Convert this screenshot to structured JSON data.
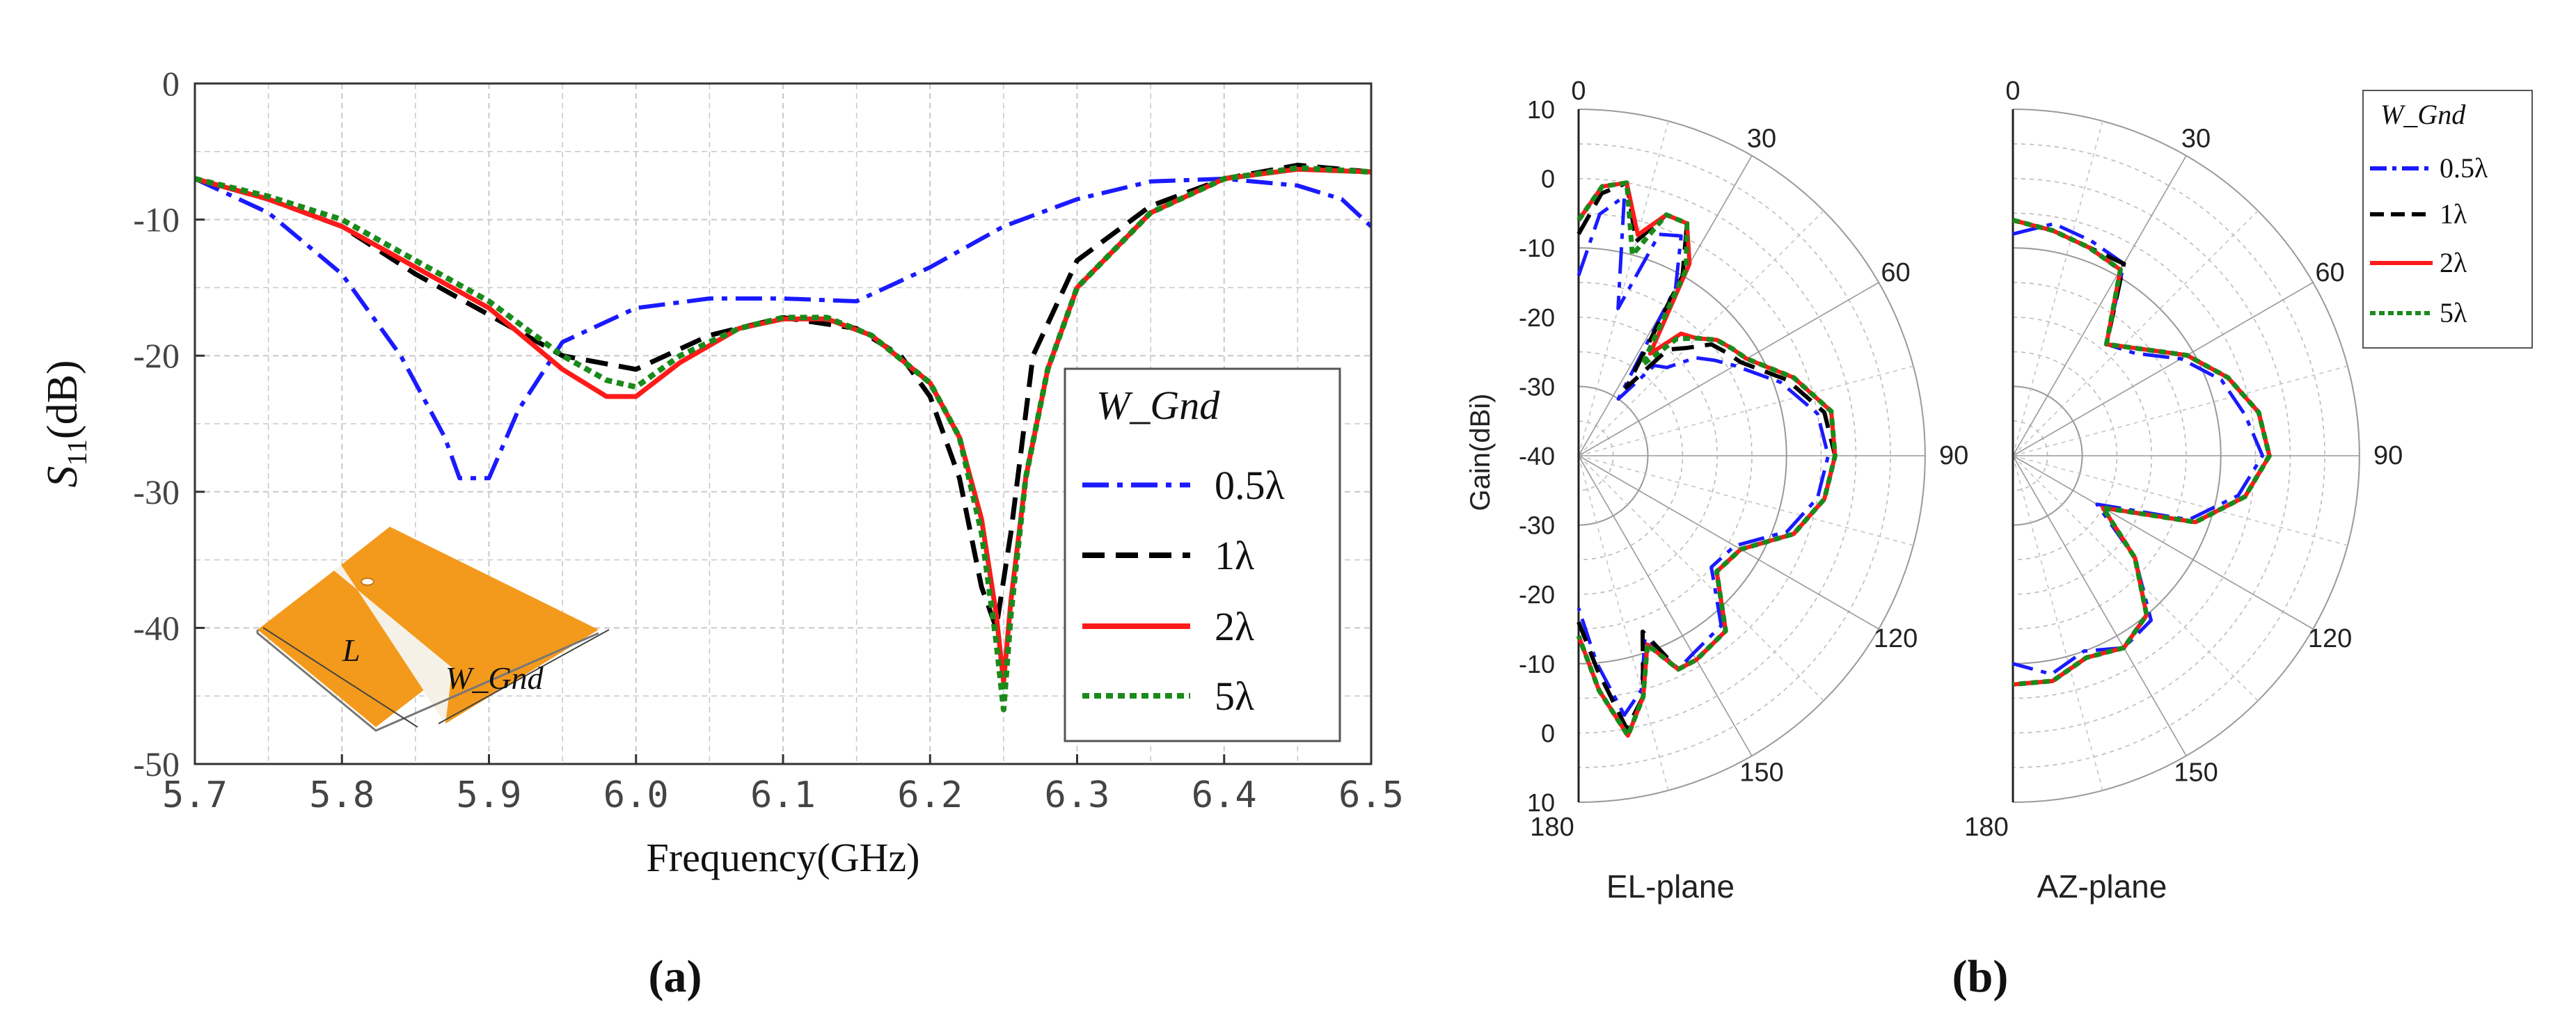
{
  "panel_labels": {
    "a": "(a)",
    "b": "(b)"
  },
  "legend": {
    "title": "W_Gnd",
    "entries": [
      "0.5λ",
      "1λ",
      "2λ",
      "5λ"
    ]
  },
  "colors": {
    "blue": "#1a1aff",
    "black": "#000000",
    "red": "#ff1a1a",
    "green": "#1a8a1a",
    "antenna": "#f39a1c"
  },
  "inset": {
    "label_l": "L",
    "label_w": "W_Gnd"
  },
  "chart_data": [
    {
      "type": "line",
      "xlabel": "Frequency(GHz)",
      "ylabel": "S11(dB)",
      "xlim": [
        5.7,
        6.5
      ],
      "ylim": [
        -50,
        0
      ],
      "x_ticks": [
        "5.7",
        "5.8",
        "5.9",
        "6.0",
        "6.1",
        "6.2",
        "6.3",
        "6.4",
        "6.5"
      ],
      "y_ticks": [
        "0",
        "-10",
        "-20",
        "-30",
        "-40",
        "-50"
      ],
      "grid": true,
      "legend_position": "right",
      "series": [
        {
          "name": "0.5λ",
          "style": "dashdot",
          "color": "blue",
          "x": [
            5.7,
            5.75,
            5.8,
            5.84,
            5.87,
            5.88,
            5.9,
            5.92,
            5.95,
            6.0,
            6.05,
            6.1,
            6.15,
            6.2,
            6.25,
            6.3,
            6.35,
            6.4,
            6.45,
            6.48,
            6.5
          ],
          "y": [
            -7,
            -9.5,
            -14,
            -20,
            -26,
            -29,
            -29,
            -24,
            -19,
            -16.5,
            -15.8,
            -15.8,
            -16,
            -13.5,
            -10.5,
            -8.5,
            -7.2,
            -7,
            -7.5,
            -8.5,
            -10.5
          ]
        },
        {
          "name": "1λ",
          "style": "dashed",
          "color": "black",
          "x": [
            5.7,
            5.75,
            5.8,
            5.85,
            5.9,
            5.95,
            6.0,
            6.05,
            6.1,
            6.15,
            6.18,
            6.2,
            6.22,
            6.235,
            6.245,
            6.255,
            6.27,
            6.3,
            6.35,
            6.4,
            6.45,
            6.5
          ],
          "y": [
            -7,
            -8.5,
            -10.5,
            -14,
            -17,
            -20,
            -21,
            -18.5,
            -17.2,
            -18,
            -20,
            -23,
            -29,
            -37,
            -40,
            -33,
            -20,
            -13,
            -9,
            -7,
            -6,
            -6.5
          ]
        },
        {
          "name": "2λ",
          "style": "solid",
          "color": "red",
          "x": [
            5.7,
            5.75,
            5.8,
            5.85,
            5.9,
            5.95,
            5.98,
            6.0,
            6.03,
            6.07,
            6.1,
            6.13,
            6.16,
            6.2,
            6.22,
            6.235,
            6.245,
            6.25,
            6.255,
            6.265,
            6.28,
            6.3,
            6.35,
            6.4,
            6.45,
            6.5
          ],
          "y": [
            -7,
            -8.5,
            -10.5,
            -13.5,
            -16.5,
            -21,
            -23,
            -23,
            -20.5,
            -18,
            -17.3,
            -17.3,
            -18.5,
            -22,
            -26,
            -32,
            -39,
            -44,
            -38,
            -29,
            -21,
            -15,
            -9.5,
            -7,
            -6.3,
            -6.5
          ]
        },
        {
          "name": "5λ",
          "style": "dotted",
          "color": "green",
          "x": [
            5.7,
            5.75,
            5.8,
            5.85,
            5.9,
            5.95,
            5.98,
            6.0,
            6.03,
            6.07,
            6.1,
            6.13,
            6.16,
            6.2,
            6.22,
            6.235,
            6.245,
            6.25,
            6.255,
            6.265,
            6.28,
            6.3,
            6.35,
            6.4,
            6.45,
            6.5
          ],
          "y": [
            -7,
            -8.3,
            -10,
            -13,
            -16,
            -20,
            -21.8,
            -22.3,
            -20,
            -18,
            -17.2,
            -17.2,
            -18.5,
            -22,
            -26,
            -33,
            -41,
            -46,
            -39,
            -29,
            -21,
            -15,
            -9.5,
            -7,
            -6.2,
            -6.5
          ]
        }
      ]
    },
    {
      "type": "polar",
      "subplots": [
        "EL-plane",
        "AZ-plane"
      ],
      "ylabel": "Gain(dBi)",
      "r_range": [
        -40,
        10
      ],
      "r_ticks_upper": [
        "10",
        "0",
        "-10",
        "-20",
        "-30",
        "-40"
      ],
      "r_ticks_lower": [
        "-30",
        "-20",
        "-10",
        "0",
        "10"
      ],
      "angle_ticks": [
        "0",
        "30",
        "60",
        "90",
        "120",
        "150",
        "180"
      ],
      "grid": true,
      "el_series": [
        {
          "name": "0.5λ",
          "theta": [
            0,
            5,
            10,
            15,
            20,
            25,
            30,
            35,
            40,
            45,
            50,
            55,
            60,
            70,
            80,
            90,
            100,
            110,
            120,
            130,
            140,
            150,
            155,
            160,
            165,
            170,
            175,
            180
          ],
          "gain": [
            -14,
            -5,
            -2,
            -18,
            -6,
            -5,
            -12,
            -30,
            -23,
            -22,
            -18,
            -16,
            -14,
            -9,
            -5,
            -4,
            -5,
            -8,
            -14,
            -15,
            -8,
            -7,
            -6,
            -12,
            -5,
            -2,
            -10,
            -18
          ]
        },
        {
          "name": "1λ",
          "theta": [
            0,
            5,
            10,
            15,
            20,
            25,
            30,
            35,
            40,
            45,
            50,
            55,
            60,
            70,
            80,
            90,
            100,
            110,
            120,
            130,
            140,
            150,
            155,
            160,
            165,
            170,
            175,
            180
          ],
          "gain": [
            -8,
            -2,
            0,
            -8,
            -3,
            -3,
            -10,
            -28,
            -20,
            -18,
            -15,
            -14,
            -13,
            -8,
            -4,
            -3,
            -4,
            -7,
            -13,
            -14,
            -7,
            -6,
            -6,
            -13,
            -4,
            0,
            -9,
            -16
          ]
        },
        {
          "name": "2λ",
          "theta": [
            0,
            5,
            10,
            15,
            20,
            25,
            30,
            35,
            40,
            45,
            50,
            55,
            60,
            70,
            80,
            90,
            100,
            110,
            120,
            130,
            140,
            150,
            155,
            160,
            165,
            170,
            175,
            180
          ],
          "gain": [
            -6,
            -1,
            0,
            -7,
            -3,
            -3,
            -8,
            -22,
            -17,
            -16,
            -14,
            -13,
            -12,
            -7,
            -3,
            -3,
            -4,
            -7,
            -13,
            -14,
            -7,
            -6,
            -6,
            -11,
            -4,
            1,
            -6,
            -14
          ]
        },
        {
          "name": "5λ",
          "theta": [
            0,
            5,
            10,
            15,
            20,
            25,
            30,
            35,
            40,
            45,
            50,
            55,
            60,
            70,
            80,
            90,
            100,
            110,
            120,
            130,
            140,
            150,
            155,
            160,
            165,
            170,
            175,
            180
          ],
          "gain": [
            -6,
            -1,
            0,
            -10,
            -3,
            -3,
            -9,
            -24,
            -18,
            -16,
            -14,
            -13,
            -12,
            -7,
            -3,
            -3,
            -4,
            -7,
            -13,
            -14,
            -7,
            -6,
            -6,
            -11,
            -4,
            1,
            -6,
            -14
          ]
        }
      ],
      "az_series": [
        {
          "name": "0.5λ",
          "theta": [
            0,
            10,
            20,
            30,
            40,
            50,
            60,
            70,
            80,
            90,
            100,
            110,
            120,
            130,
            140,
            150,
            160,
            170,
            180
          ],
          "gain": [
            -8,
            -6,
            -7,
            -8,
            -19,
            -17,
            -12,
            -8,
            -6,
            -4,
            -7,
            -13,
            -26,
            -17,
            -9,
            -8,
            -10,
            -8,
            -10
          ]
        },
        {
          "name": "1λ",
          "theta": [
            0,
            10,
            20,
            30,
            40,
            50,
            60,
            70,
            80,
            90,
            100,
            110,
            120,
            130,
            140,
            150,
            160,
            170,
            180
          ],
          "gain": [
            -6,
            -7,
            -8,
            -8,
            -19,
            -16,
            -11,
            -7,
            -4,
            -3,
            -6,
            -12,
            -25,
            -17,
            -10,
            -8,
            -9,
            -7,
            -7
          ]
        },
        {
          "name": "2λ",
          "theta": [
            0,
            10,
            20,
            30,
            40,
            50,
            60,
            70,
            80,
            90,
            100,
            110,
            120,
            130,
            140,
            150,
            160,
            170,
            180
          ],
          "gain": [
            -6,
            -7,
            -8,
            -9,
            -19,
            -16,
            -11,
            -7,
            -4,
            -3,
            -6,
            -12,
            -25,
            -17,
            -10,
            -8,
            -9,
            -7,
            -7
          ]
        },
        {
          "name": "5λ",
          "theta": [
            0,
            10,
            20,
            30,
            40,
            50,
            60,
            70,
            80,
            90,
            100,
            110,
            120,
            130,
            140,
            150,
            160,
            170,
            180
          ],
          "gain": [
            -6,
            -7,
            -8,
            -9,
            -19,
            -16,
            -11,
            -7,
            -4,
            -3,
            -6,
            -12,
            -25,
            -17,
            -10,
            -8,
            -9,
            -7,
            -7
          ]
        }
      ]
    }
  ]
}
